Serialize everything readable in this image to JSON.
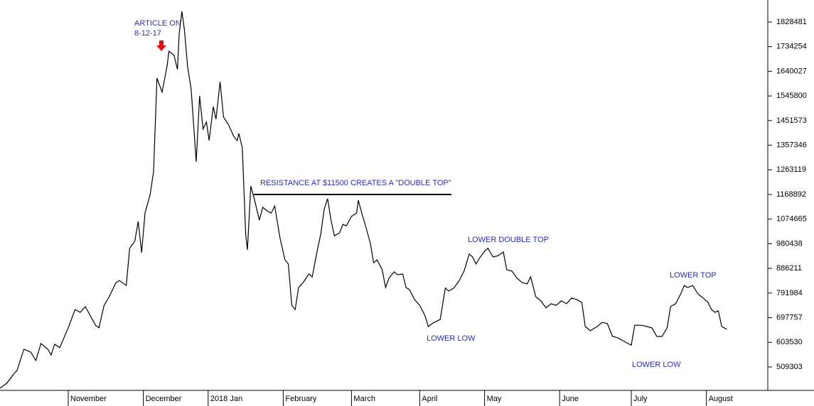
{
  "chart_data": {
    "type": "line",
    "x": [
      0,
      2,
      4,
      5,
      7,
      9,
      10.5,
      12,
      14,
      15,
      16,
      17.5,
      20,
      22,
      23.5,
      25,
      28,
      29,
      30.5,
      32,
      34,
      35,
      37,
      38,
      39.5,
      40.5,
      41.5,
      42.5,
      44,
      45,
      46,
      47.5,
      49,
      49.5,
      51,
      52,
      52.5,
      53.3,
      54,
      55,
      56,
      57.5,
      58.5,
      59.5,
      60.5,
      61.3,
      62.5,
      63.3,
      64.5,
      65.5,
      67,
      68.5,
      69.5,
      70,
      71,
      72,
      72.5,
      73.5,
      74.5,
      76,
      77,
      78.5,
      79.5,
      80.5,
      82,
      83.5,
      84.5,
      85.5,
      86.5,
      87.5,
      89,
      90.5,
      91.5,
      93,
      94,
      95,
      96,
      97,
      98,
      99.5,
      100.5,
      101.5,
      103,
      104.5,
      105,
      106,
      107,
      108.5,
      109.5,
      110.5,
      112,
      113,
      114,
      115.5,
      116.5,
      118,
      119,
      120,
      121.5,
      123,
      124.5,
      125.5,
      127,
      129,
      130.5,
      131.5,
      133,
      134.5,
      136,
      137.5,
      138.5,
      139.5,
      140.5,
      142,
      143,
      144.5,
      146,
      147.5,
      148.5,
      150,
      151.5,
      153,
      154.5,
      155.5,
      157,
      158.5,
      160,
      161.5,
      163,
      164.5,
      166,
      167.5,
      169,
      170.5,
      171.5,
      173,
      175,
      176.5,
      178,
      179.5,
      181,
      182.5,
      184,
      185,
      186,
      188,
      189.5,
      191,
      192.5,
      194,
      195.5,
      196.5,
      198,
      199.5,
      200.5,
      201.5,
      203,
      204.5,
      206,
      207.5,
      208.5,
      209.5,
      210.5,
      211.5,
      213
    ],
    "series": [
      {
        "color": "#000000",
        "values": [
          428000,
          447000,
          482000,
          496000,
          577000,
          566000,
          534000,
          599000,
          577000,
          555000,
          596000,
          583000,
          659000,
          729000,
          718000,
          740000,
          669000,
          659000,
          745000,
          778000,
          832000,
          840000,
          821000,
          963000,
          990000,
          1066000,
          946000,
          1098000,
          1169000,
          1256000,
          1614000,
          1560000,
          1663000,
          1717000,
          1701000,
          1647000,
          1782000,
          1869000,
          1804000,
          1655000,
          1573000,
          1294000,
          1546000,
          1419000,
          1446000,
          1375000,
          1505000,
          1457000,
          1600000,
          1465000,
          1435000,
          1391000,
          1375000,
          1402000,
          1348000,
          1017000,
          957000,
          1201000,
          1153000,
          1071000,
          1120000,
          1104000,
          1098000,
          1125000,
          1006000,
          919000,
          903000,
          745000,
          729000,
          813000,
          835000,
          865000,
          854000,
          957000,
          1017000,
          1112000,
          1153000,
          1071000,
          1011000,
          1022000,
          1055000,
          1049000,
          1085000,
          1098000,
          1147000,
          1098000,
          1055000,
          984000,
          908000,
          919000,
          881000,
          813000,
          849000,
          873000,
          862000,
          865000,
          813000,
          805000,
          767000,
          745000,
          707000,
          664000,
          678000,
          691000,
          811000,
          800000,
          811000,
          838000,
          876000,
          941000,
          930000,
          903000,
          925000,
          952000,
          963000,
          930000,
          935000,
          949000,
          881000,
          876000,
          849000,
          832000,
          827000,
          854000,
          778000,
          762000,
          735000,
          751000,
          745000,
          762000,
          751000,
          773000,
          767000,
          756000,
          664000,
          648000,
          664000,
          680000,
          675000,
          626000,
          621000,
          610000,
          599000,
          593000,
          669000,
          669000,
          664000,
          659000,
          626000,
          626000,
          659000,
          740000,
          751000,
          789000,
          821000,
          813000,
          821000,
          789000,
          773000,
          756000,
          729000,
          718000,
          724000,
          664000,
          653000
        ]
      }
    ],
    "xlim": [
      0,
      225
    ],
    "xticks": [
      {
        "value": 20,
        "label": "November"
      },
      {
        "value": 42,
        "label": "December"
      },
      {
        "value": 61,
        "label": "2018 Jan"
      },
      {
        "value": 83,
        "label": "February"
      },
      {
        "value": 103,
        "label": "March"
      },
      {
        "value": 123,
        "label": "April"
      },
      {
        "value": 142,
        "label": "May"
      },
      {
        "value": 164,
        "label": "June"
      },
      {
        "value": 185,
        "label": "July"
      },
      {
        "value": 207,
        "label": "August"
      }
    ],
    "ylim": [
      419700,
      1912600
    ],
    "yticks": [
      509303,
      603530,
      697757,
      791984,
      886211,
      980438,
      1074665,
      1168892,
      1263119,
      1357346,
      1451573,
      1545800,
      1640027,
      1734254,
      1828481
    ],
    "resistance_line": {
      "value": 1169000,
      "x": [
        74.4,
        132.3
      ]
    },
    "annotations": [
      "ARTICLE ON",
      "8-12-17",
      "RESISTANCE AT $11500 CREATES A \"DOUBLE TOP\"",
      "LOWER DOUBLE TOP",
      "LOWER LOW",
      "LOWER TOP",
      "LOWER LOW"
    ]
  }
}
